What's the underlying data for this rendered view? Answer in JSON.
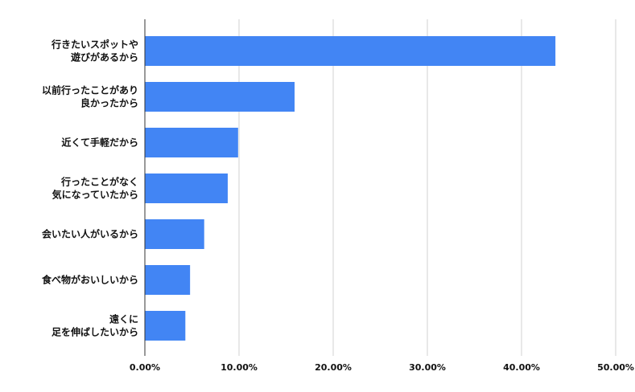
{
  "chart_data": {
    "type": "bar",
    "orientation": "horizontal",
    "categories": [
      [
        "行きたいスポットや",
        "遊びがあるから"
      ],
      [
        "以前行ったことがあり",
        "良かったから"
      ],
      [
        "近くて手軽だから"
      ],
      [
        "行ったことがなく",
        "気になっていたから"
      ],
      [
        "会いたい人がいるから"
      ],
      [
        "食べ物がおいしいから"
      ],
      [
        "遠くに",
        "足を伸ばしたいから"
      ]
    ],
    "values": [
      43.6,
      15.9,
      9.9,
      8.8,
      6.3,
      4.8,
      4.3
    ],
    "xlim": [
      0,
      50
    ],
    "xticks": [
      "0.00%",
      "10.00%",
      "20.00%",
      "30.00%",
      "40.00%",
      "50.00%"
    ],
    "bar_color": "#4285f4",
    "grid": true,
    "title": "",
    "xlabel": "",
    "ylabel": ""
  }
}
